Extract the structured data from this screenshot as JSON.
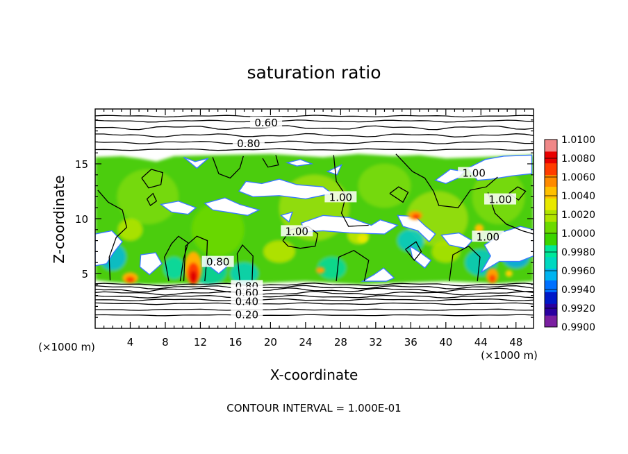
{
  "chart_data": {
    "type": "heatmap",
    "title": "saturation ratio",
    "xlabel": "X-coordinate",
    "ylabel": "Z-coordinate",
    "x_units": "(×1000 m)",
    "y_units": "(×1000 m)",
    "xlim": [
      0,
      50
    ],
    "ylim": [
      0,
      20
    ],
    "x_ticks": [
      {
        "value": 4,
        "label": "4"
      },
      {
        "value": 8,
        "label": "8"
      },
      {
        "value": 12,
        "label": "12"
      },
      {
        "value": 16,
        "label": "16"
      },
      {
        "value": 20,
        "label": "20"
      },
      {
        "value": 24,
        "label": "24"
      },
      {
        "value": 28,
        "label": "28"
      },
      {
        "value": 32,
        "label": "32"
      },
      {
        "value": 36,
        "label": "36"
      },
      {
        "value": 40,
        "label": "40"
      },
      {
        "value": 44,
        "label": "44"
      },
      {
        "value": 48,
        "label": "48"
      }
    ],
    "y_ticks": [
      {
        "value": 5,
        "label": "5"
      },
      {
        "value": 10,
        "label": "10"
      },
      {
        "value": 15,
        "label": "15"
      }
    ],
    "colorbar": {
      "min": 0.99,
      "max": 1.01,
      "labels": [
        "1.0100",
        "1.0080",
        "1.0060",
        "1.0040",
        "1.0020",
        "1.0000",
        "0.9980",
        "0.9960",
        "0.9940",
        "0.9920",
        "0.9900"
      ],
      "colors": [
        "#7a1fa0",
        "#2a00a0",
        "#0018c8",
        "#0070ff",
        "#00b4f0",
        "#00d8c0",
        "#00e89a",
        "#3cd400",
        "#6cda00",
        "#b0e400",
        "#e8e800",
        "#ffc000",
        "#ff8a00",
        "#ff3c00",
        "#e80000",
        "#f08888"
      ]
    },
    "contour_interval": "CONTOUR INTERVAL = 1.000E-01",
    "contour_labels": [
      {
        "x": 19.5,
        "z": 18.8,
        "text": "0.60"
      },
      {
        "x": 17.5,
        "z": 16.9,
        "text": "0.80"
      },
      {
        "x": 28.0,
        "z": 12.0,
        "text": "1.00"
      },
      {
        "x": 23.0,
        "z": 8.9,
        "text": "1.00"
      },
      {
        "x": 46.2,
        "z": 11.8,
        "text": "1.00"
      },
      {
        "x": 44.8,
        "z": 8.4,
        "text": "1.00"
      },
      {
        "x": 43.2,
        "z": 14.2,
        "text": "1.00"
      },
      {
        "x": 17.3,
        "z": 3.9,
        "text": "0.80"
      },
      {
        "x": 17.3,
        "z": 3.3,
        "text": "0.60"
      },
      {
        "x": 17.3,
        "z": 2.5,
        "text": "0.40"
      },
      {
        "x": 17.3,
        "z": 1.3,
        "text": "0.20"
      },
      {
        "x": 14.0,
        "z": 6.1,
        "text": "0.80"
      }
    ]
  }
}
